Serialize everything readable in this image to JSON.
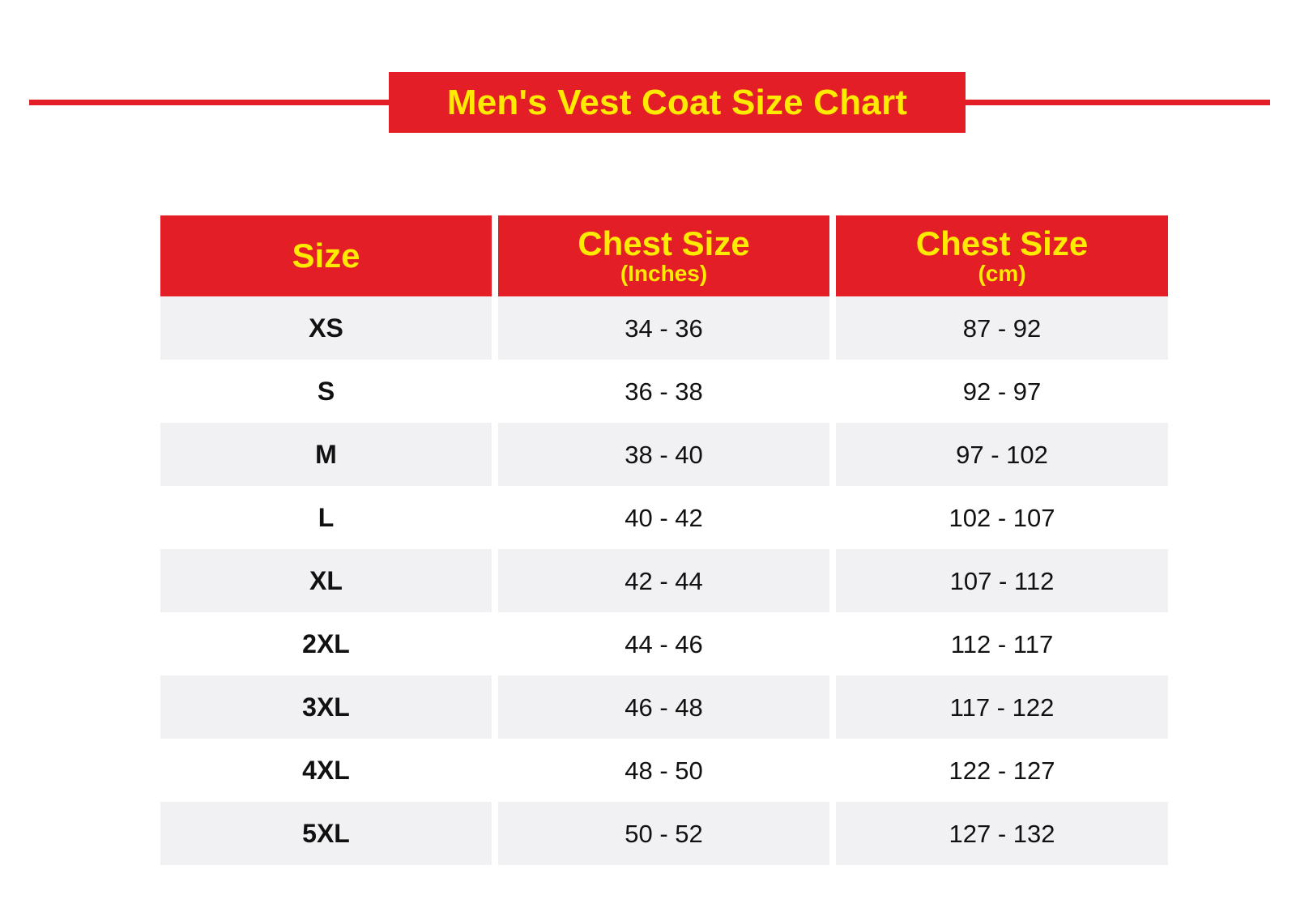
{
  "title": "Men's Vest Coat Size Chart",
  "colors": {
    "accent": "#e31e26",
    "header_text": "#ffeb00",
    "row_shade": "#f1f1f3",
    "body_text": "#111111"
  },
  "table": {
    "headers": [
      {
        "main": "Size",
        "sub": ""
      },
      {
        "main": "Chest Size",
        "sub": "(Inches)"
      },
      {
        "main": "Chest Size",
        "sub": "(cm)"
      }
    ],
    "rows": [
      {
        "size": "XS",
        "inches": "34 - 36",
        "cm": "87 - 92"
      },
      {
        "size": "S",
        "inches": "36 - 38",
        "cm": "92 - 97"
      },
      {
        "size": "M",
        "inches": "38 - 40",
        "cm": "97 - 102"
      },
      {
        "size": "L",
        "inches": "40 - 42",
        "cm": "102 - 107"
      },
      {
        "size": "XL",
        "inches": "42 - 44",
        "cm": "107 - 112"
      },
      {
        "size": "2XL",
        "inches": "44 - 46",
        "cm": "112 - 117"
      },
      {
        "size": "3XL",
        "inches": "46 - 48",
        "cm": "117 - 122"
      },
      {
        "size": "4XL",
        "inches": "48 - 50",
        "cm": "122 - 127"
      },
      {
        "size": "5XL",
        "inches": "50 - 52",
        "cm": "127 - 132"
      }
    ]
  }
}
